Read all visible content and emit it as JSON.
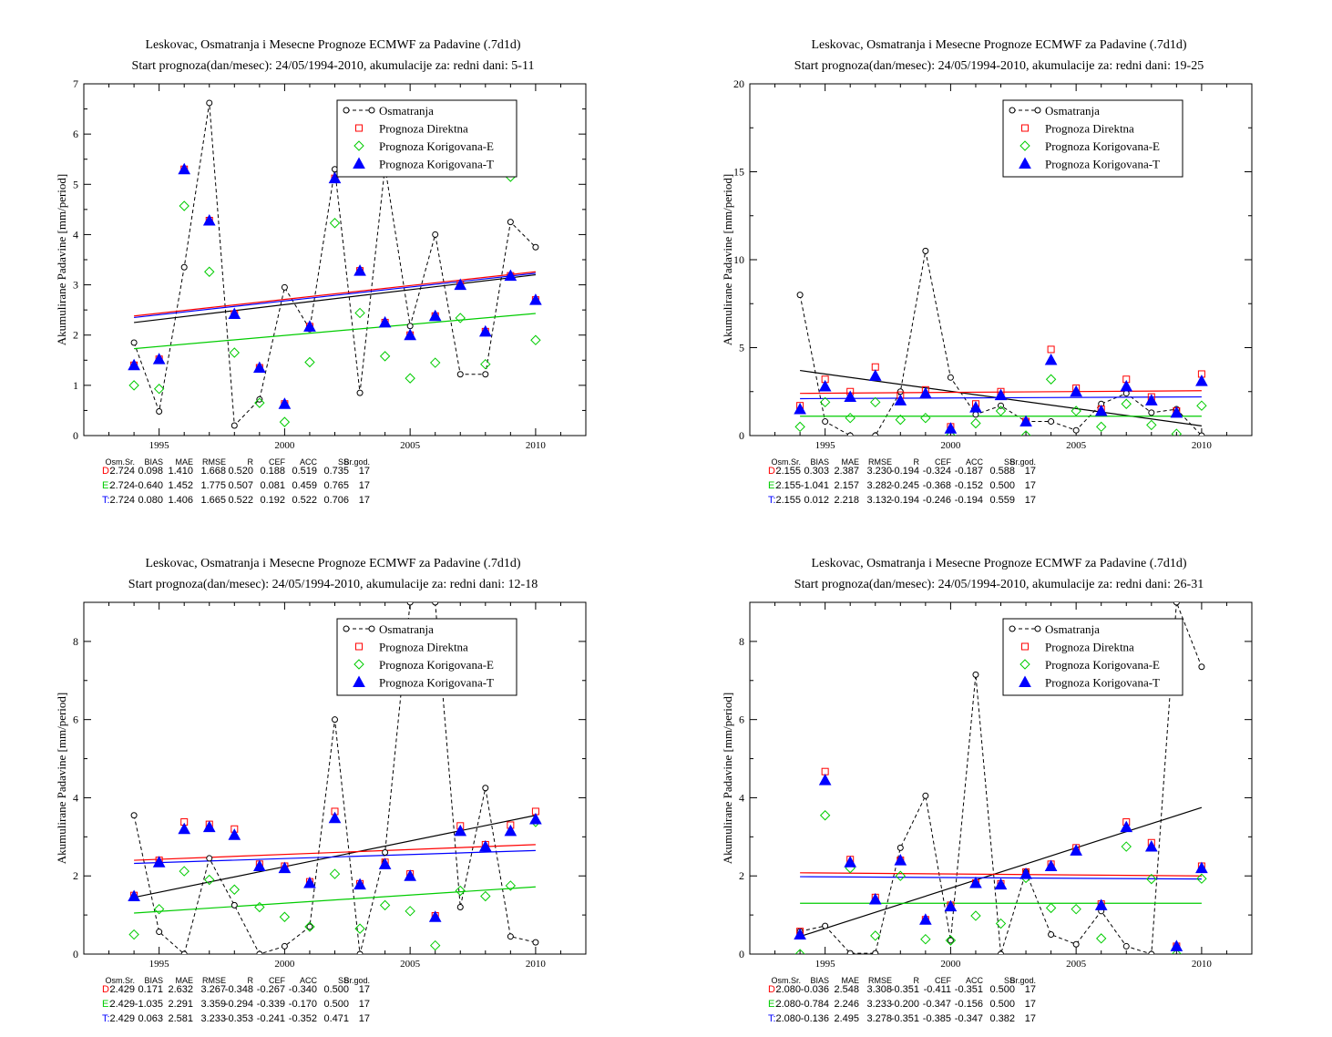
{
  "panels": [
    {
      "title1": "Leskovac, Osmatranja i Mesecne Prognoze ECMWF za Padavine (.7d1d)",
      "title2": "Start prognoza(dan/mesec): 24/05/1994-2010, akumulacije za: redni dani: 5-11",
      "stats": {
        "headers": [
          "Osm.Sr.",
          "BIAS",
          "MAE",
          "RMSE",
          "R",
          "CEF",
          "ACC",
          "SS",
          "Br.god."
        ],
        "rows": [
          {
            "label": "D:",
            "color": "#ff0000",
            "values": [
              "2.724",
              "0.098",
              "1.410",
              "1.668",
              "0.520",
              "0.188",
              "0.519",
              "0.735",
              "17"
            ]
          },
          {
            "label": "E:",
            "color": "#00cc00",
            "values": [
              "2.724",
              "-0.640",
              "1.452",
              "1.775",
              "0.507",
              "0.081",
              "0.459",
              "0.765",
              "17"
            ]
          },
          {
            "label": "T:",
            "color": "#0000ff",
            "values": [
              "2.724",
              "0.080",
              "1.406",
              "1.665",
              "0.522",
              "0.192",
              "0.522",
              "0.706",
              "17"
            ]
          }
        ]
      }
    },
    {
      "title1": "Leskovac, Osmatranja i Mesecne Prognoze ECMWF za Padavine (.7d1d)",
      "title2": "Start prognoza(dan/mesec): 24/05/1994-2010, akumulacije za: redni dani: 19-25",
      "stats": {
        "headers": [
          "Osm.Sr.",
          "BIAS",
          "MAE",
          "RMSE",
          "R",
          "CEF",
          "ACC",
          "SS",
          "Br.god."
        ],
        "rows": [
          {
            "label": "D:",
            "color": "#ff0000",
            "values": [
              "2.155",
              "0.303",
              "2.387",
              "3.230",
              "-0.194",
              "-0.324",
              "-0.187",
              "0.588",
              "17"
            ]
          },
          {
            "label": "E:",
            "color": "#00cc00",
            "values": [
              "2.155",
              "-1.041",
              "2.157",
              "3.282",
              "-0.245",
              "-0.368",
              "-0.152",
              "0.500",
              "17"
            ]
          },
          {
            "label": "T:",
            "color": "#0000ff",
            "values": [
              "2.155",
              "0.012",
              "2.218",
              "3.132",
              "-0.194",
              "-0.246",
              "-0.194",
              "0.559",
              "17"
            ]
          }
        ]
      }
    },
    {
      "title1": "Leskovac, Osmatranja i Mesecne Prognoze ECMWF za Padavine (.7d1d)",
      "title2": "Start prognoza(dan/mesec): 24/05/1994-2010, akumulacije za: redni dani: 12-18",
      "stats": {
        "headers": [
          "Osm.Sr.",
          "BIAS",
          "MAE",
          "RMSE",
          "R",
          "CEF",
          "ACC",
          "SS",
          "Br.god."
        ],
        "rows": [
          {
            "label": "D:",
            "color": "#ff0000",
            "values": [
              "2.429",
              "0.171",
              "2.632",
              "3.267",
              "-0.348",
              "-0.267",
              "-0.340",
              "0.500",
              "17"
            ]
          },
          {
            "label": "E:",
            "color": "#00cc00",
            "values": [
              "2.429",
              "-1.035",
              "2.291",
              "3.359",
              "-0.294",
              "-0.339",
              "-0.170",
              "0.500",
              "17"
            ]
          },
          {
            "label": "T:",
            "color": "#0000ff",
            "values": [
              "2.429",
              "0.063",
              "2.581",
              "3.233",
              "-0.353",
              "-0.241",
              "-0.352",
              "0.471",
              "17"
            ]
          }
        ]
      }
    },
    {
      "title1": "Leskovac, Osmatranja i Mesecne Prognoze ECMWF za Padavine (.7d1d)",
      "title2": "Start prognoza(dan/mesec): 24/05/1994-2010, akumulacije za: redni dani: 26-31",
      "stats": {
        "headers": [
          "Osm.Sr.",
          "BIAS",
          "MAE",
          "RMSE",
          "R",
          "CEF",
          "ACC",
          "SS",
          "Br.god."
        ],
        "rows": [
          {
            "label": "D:",
            "color": "#ff0000",
            "values": [
              "2.080",
              "-0.036",
              "2.548",
              "3.308",
              "-0.351",
              "-0.411",
              "-0.351",
              "0.500",
              "17"
            ]
          },
          {
            "label": "E:",
            "color": "#00cc00",
            "values": [
              "2.080",
              "-0.784",
              "2.246",
              "3.233",
              "-0.200",
              "-0.347",
              "-0.156",
              "0.500",
              "17"
            ]
          },
          {
            "label": "T:",
            "color": "#0000ff",
            "values": [
              "2.080",
              "-0.136",
              "2.495",
              "3.278",
              "-0.351",
              "-0.385",
              "-0.347",
              "0.382",
              "17"
            ]
          }
        ]
      }
    }
  ],
  "chart_data": [
    {
      "type": "scatter",
      "title": "Leskovac, Osmatranja i Mesecne Prognoze ECMWF za Padavine (.7d1d)",
      "subtitle": "Start prognoza(dan/mesec): 24/05/1994-2010, akumulacije za: redni dani: 5-11",
      "ylabel": "Akumulirane Padavine [mm/period]",
      "xlim": [
        1992,
        2012
      ],
      "ylim": [
        0,
        7
      ],
      "xticks": [
        1995,
        2000,
        2005,
        2010
      ],
      "yticks": [
        0,
        1,
        2,
        3,
        4,
        5,
        6,
        7
      ],
      "legend_position": "top-right",
      "x": [
        1994,
        1995,
        1996,
        1997,
        1998,
        1999,
        2000,
        2001,
        2002,
        2003,
        2004,
        2005,
        2006,
        2007,
        2008,
        2009,
        2010
      ],
      "series": [
        {
          "name": "Osmatranja",
          "marker": "circle",
          "color": "#000000",
          "values": [
            1.85,
            0.48,
            3.35,
            6.62,
            0.2,
            0.72,
            2.95,
            2.12,
            5.3,
            0.85,
            5.35,
            2.18,
            4.0,
            1.22,
            1.22,
            4.25,
            3.75
          ],
          "trend": [
            2.25,
            3.2
          ]
        },
        {
          "name": "Prognoza Direktna",
          "marker": "square",
          "color": "#ff0000",
          "values": [
            1.4,
            1.52,
            5.3,
            4.28,
            2.42,
            1.35,
            0.63,
            2.17,
            5.12,
            3.28,
            2.25,
            2.0,
            2.38,
            3.0,
            2.07,
            3.18,
            2.7
          ],
          "trend": [
            2.38,
            3.26
          ]
        },
        {
          "name": "Prognoza Korigovana-E",
          "marker": "diamond",
          "color": "#00cc00",
          "values": [
            1.0,
            0.93,
            4.57,
            3.26,
            1.65,
            0.65,
            0.27,
            1.46,
            4.23,
            2.44,
            1.58,
            1.14,
            1.45,
            2.34,
            1.42,
            5.15,
            1.9
          ],
          "trend": [
            1.73,
            2.43
          ]
        },
        {
          "name": "Prognoza Korigovana-T",
          "marker": "triangle",
          "color": "#0000ff",
          "values": [
            1.4,
            1.52,
            5.3,
            4.28,
            2.42,
            1.35,
            0.63,
            2.17,
            5.12,
            3.28,
            2.25,
            2.0,
            2.38,
            3.0,
            2.07,
            3.18,
            2.7
          ],
          "trend": [
            2.35,
            3.23
          ]
        }
      ]
    },
    {
      "type": "scatter",
      "title": "Leskovac, Osmatranja i Mesecne Prognoze ECMWF za Padavine (.7d1d)",
      "subtitle": "Start prognoza(dan/mesec): 24/05/1994-2010, akumulacije za: redni dani: 19-25",
      "ylabel": "Akumulirane Padavine [mm/period]",
      "xlim": [
        1992,
        2012
      ],
      "ylim": [
        0,
        20
      ],
      "xticks": [
        1995,
        2000,
        2005,
        2010
      ],
      "yticks": [
        0,
        5,
        10,
        15,
        20
      ],
      "legend_position": "top-right",
      "x": [
        1994,
        1995,
        1996,
        1997,
        1998,
        1999,
        2000,
        2001,
        2002,
        2003,
        2004,
        2005,
        2006,
        2007,
        2008,
        2009,
        2010
      ],
      "series": [
        {
          "name": "Osmatranja",
          "marker": "circle",
          "color": "#000000",
          "values": [
            8.0,
            0.8,
            0.0,
            0.0,
            2.5,
            10.5,
            3.3,
            1.2,
            1.7,
            0.8,
            0.8,
            0.3,
            1.8,
            2.4,
            1.3,
            1.5,
            0.0
          ],
          "trend": [
            3.7,
            0.55
          ]
        },
        {
          "name": "Prognoza Direktna",
          "marker": "square",
          "color": "#ff0000",
          "values": [
            1.7,
            3.2,
            2.5,
            3.9,
            2.3,
            2.6,
            0.5,
            1.8,
            2.5,
            0.8,
            4.9,
            2.7,
            1.5,
            3.2,
            2.2,
            1.4,
            3.5
          ],
          "trend": [
            2.4,
            2.55
          ]
        },
        {
          "name": "Prognoza Korigovana-E",
          "marker": "diamond",
          "color": "#00cc00",
          "values": [
            0.5,
            1.9,
            1.0,
            1.9,
            0.9,
            1.0,
            0.0,
            0.7,
            1.4,
            0.0,
            3.2,
            1.4,
            0.5,
            1.8,
            0.6,
            0.1,
            1.7
          ],
          "trend": [
            1.1,
            1.1
          ]
        },
        {
          "name": "Prognoza Korigovana-T",
          "marker": "triangle",
          "color": "#0000ff",
          "values": [
            1.5,
            2.8,
            2.2,
            3.4,
            2.0,
            2.4,
            0.4,
            1.6,
            2.3,
            0.8,
            4.3,
            2.5,
            1.4,
            2.8,
            2.0,
            1.3,
            3.1
          ],
          "trend": [
            2.1,
            2.2
          ]
        }
      ]
    },
    {
      "type": "scatter",
      "title": "Leskovac, Osmatranja i Mesecne Prognoze ECMWF za Padavine (.7d1d)",
      "subtitle": "Start prognoza(dan/mesec): 24/05/1994-2010, akumulacije za: redni dani: 12-18",
      "ylabel": "Akumulirane Padavine [mm/period]",
      "xlim": [
        1992,
        2012
      ],
      "ylim": [
        0,
        9
      ],
      "xticks": [
        1995,
        2000,
        2005,
        2010
      ],
      "yticks": [
        0,
        2,
        4,
        6,
        8
      ],
      "legend_position": "top-right",
      "x": [
        1994,
        1995,
        1996,
        1997,
        1998,
        1999,
        2000,
        2001,
        2002,
        2003,
        2004,
        2005,
        2006,
        2007,
        2008,
        2009,
        2010
      ],
      "series": [
        {
          "name": "Osmatranja",
          "marker": "circle",
          "color": "#000000",
          "values": [
            3.55,
            0.57,
            0.0,
            2.45,
            1.25,
            0.0,
            0.2,
            0.7,
            6.0,
            0.0,
            2.6,
            9.0,
            9.0,
            1.2,
            4.25,
            0.45,
            0.3
          ],
          "trend": [
            1.45,
            3.55
          ]
        },
        {
          "name": "Prognoza Direktna",
          "marker": "square",
          "color": "#ff0000",
          "values": [
            1.5,
            2.4,
            3.38,
            3.32,
            3.2,
            2.3,
            2.25,
            1.85,
            3.65,
            1.8,
            2.35,
            2.05,
            0.98,
            3.28,
            2.8,
            3.3,
            3.65
          ],
          "trend": [
            2.4,
            2.8
          ]
        },
        {
          "name": "Prognoza Korigovana-E",
          "marker": "diamond",
          "color": "#00cc00",
          "values": [
            0.5,
            1.15,
            2.12,
            1.9,
            1.65,
            1.2,
            0.95,
            0.7,
            2.05,
            0.65,
            1.25,
            1.1,
            0.22,
            1.62,
            1.48,
            1.75,
            3.38
          ],
          "trend": [
            1.05,
            1.72
          ]
        },
        {
          "name": "Prognoza Korigovana-T",
          "marker": "triangle",
          "color": "#0000ff",
          "values": [
            1.48,
            2.35,
            3.2,
            3.25,
            3.05,
            2.25,
            2.2,
            1.82,
            3.48,
            1.78,
            2.3,
            2.0,
            0.95,
            3.15,
            2.75,
            3.15,
            3.45
          ],
          "trend": [
            2.32,
            2.65
          ]
        }
      ]
    },
    {
      "type": "scatter",
      "title": "Leskovac, Osmatranja i Mesecne Prognoze ECMWF za Padavine (.7d1d)",
      "subtitle": "Start prognoza(dan/mesec): 24/05/1994-2010, akumulacije za: redni dani: 26-31",
      "ylabel": "Akumulirane Padavine [mm/period]",
      "xlim": [
        1992,
        2012
      ],
      "ylim": [
        0,
        9
      ],
      "xticks": [
        1995,
        2000,
        2005,
        2010
      ],
      "yticks": [
        0,
        2,
        4,
        6,
        8
      ],
      "legend_position": "top-right",
      "x": [
        1994,
        1995,
        1996,
        1997,
        1998,
        1999,
        2000,
        2001,
        2002,
        2003,
        2004,
        2005,
        2006,
        2007,
        2008,
        2009,
        2010
      ],
      "series": [
        {
          "name": "Osmatranja",
          "marker": "circle",
          "color": "#000000",
          "values": [
            0.58,
            0.72,
            0.02,
            0.02,
            2.72,
            4.05,
            0.35,
            7.15,
            0.0,
            2.1,
            0.5,
            0.25,
            1.1,
            0.2,
            0.0,
            9.0,
            7.35
          ],
          "trend": [
            0.45,
            3.75
          ]
        },
        {
          "name": "Prognoza Direktna",
          "marker": "square",
          "color": "#ff0000",
          "values": [
            0.58,
            4.67,
            2.42,
            1.45,
            2.4,
            0.88,
            1.25,
            1.82,
            1.8,
            2.1,
            2.3,
            2.72,
            1.28,
            3.38,
            2.85,
            0.2,
            2.25
          ],
          "trend": [
            2.08,
            2.0
          ]
        },
        {
          "name": "Prognoza Korigovana-E",
          "marker": "diamond",
          "color": "#00cc00",
          "values": [
            0.0,
            3.55,
            2.2,
            0.47,
            2.0,
            0.38,
            0.35,
            0.98,
            0.78,
            1.95,
            1.18,
            1.15,
            0.4,
            2.75,
            1.92,
            0.0,
            1.93
          ],
          "trend": [
            1.3,
            1.3
          ]
        },
        {
          "name": "Prognoza Korigovana-T",
          "marker": "triangle",
          "color": "#0000ff",
          "values": [
            0.5,
            4.45,
            2.35,
            1.4,
            2.4,
            0.88,
            1.22,
            1.82,
            1.78,
            2.05,
            2.25,
            2.65,
            1.25,
            3.25,
            2.75,
            0.2,
            2.2
          ],
          "trend": [
            1.98,
            1.92
          ]
        }
      ]
    }
  ]
}
